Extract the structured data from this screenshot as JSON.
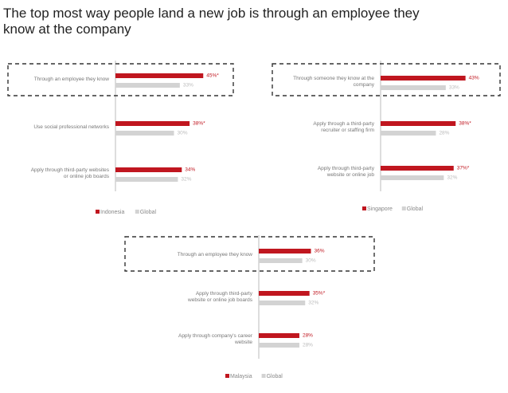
{
  "title": "The top most way people land a new job is through an employee they know at the company",
  "chart_data": [
    {
      "type": "bar",
      "categories": [
        "Through an employee they know",
        "Use social professional networks",
        "Apply through third-party websites or online job boards"
      ],
      "series": [
        {
          "name": "Indonesia",
          "color": "#c0161f",
          "values": [
            45,
            38,
            34
          ],
          "value_labels": [
            "45%*",
            "38%*",
            "34%"
          ]
        },
        {
          "name": "Global",
          "color": "#d3d3d3",
          "values": [
            33,
            30,
            32
          ],
          "value_labels": [
            "33%",
            "30%",
            "32%"
          ]
        }
      ]
    },
    {
      "type": "bar",
      "categories": [
        "Through someone they know at the company",
        "Apply through a third-party recruiter or staffing firm",
        "Apply through third-party website or online job"
      ],
      "series": [
        {
          "name": "Singapore",
          "color": "#c0161f",
          "values": [
            43,
            38,
            37
          ],
          "value_labels": [
            "43%",
            "38%*",
            "37%*"
          ]
        },
        {
          "name": "Global",
          "color": "#d3d3d3",
          "values": [
            33,
            28,
            32
          ],
          "value_labels": [
            "33%",
            "28%",
            "32%"
          ]
        }
      ]
    },
    {
      "type": "bar",
      "categories": [
        "Through an employee they know",
        "Apply through third-party website or online job boards",
        "Apply through company's career website"
      ],
      "series": [
        {
          "name": "Malaysia",
          "color": "#c0161f",
          "values": [
            36,
            35,
            28
          ],
          "value_labels": [
            "36%",
            "35%*",
            "28%"
          ]
        },
        {
          "name": "Global",
          "color": "#d3d3d3",
          "values": [
            30,
            32,
            28
          ],
          "value_labels": [
            "30%",
            "32%",
            "28%"
          ]
        }
      ]
    }
  ]
}
